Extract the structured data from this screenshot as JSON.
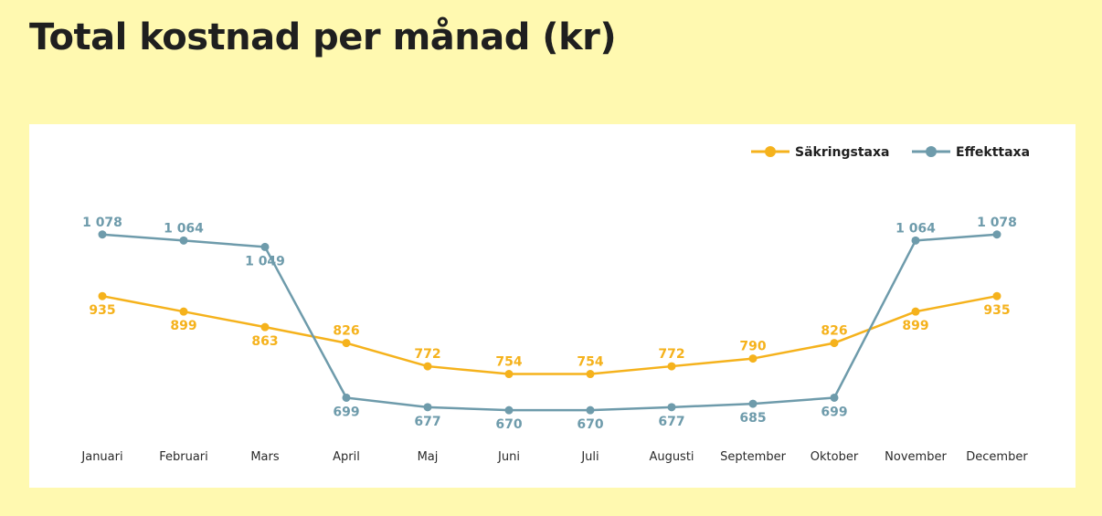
{
  "page": {
    "title": "Total kostnad per månad (kr)"
  },
  "colors": {
    "background": "#FFF9B0",
    "card": "#FFFFFF",
    "sakringstaxa": "#F5B21C",
    "effekttaxa": "#6E9BAB"
  },
  "chart_data": {
    "type": "line",
    "title": "Total kostnad per månad (kr)",
    "categories": [
      "Januari",
      "Februari",
      "Mars",
      "April",
      "Maj",
      "Juni",
      "Juli",
      "Augusti",
      "September",
      "Oktober",
      "November",
      "December"
    ],
    "series": [
      {
        "name": "Säkringstaxa",
        "color": "#F5B21C",
        "values": [
          935,
          899,
          863,
          826,
          772,
          754,
          754,
          772,
          790,
          826,
          899,
          935
        ],
        "labels": [
          "935",
          "899",
          "863",
          "826",
          "772",
          "754",
          "754",
          "772",
          "790",
          "826",
          "899",
          "935"
        ],
        "label_side": [
          "below",
          "below",
          "below",
          "above",
          "above",
          "above",
          "above",
          "above",
          "above",
          "above",
          "below",
          "below"
        ]
      },
      {
        "name": "Effekttaxa",
        "color": "#6E9BAB",
        "values": [
          1078,
          1064,
          1049,
          699,
          677,
          670,
          670,
          677,
          685,
          699,
          1064,
          1078
        ],
        "labels": [
          "1 078",
          "1 064",
          "1 049",
          "699",
          "677",
          "670",
          "670",
          "677",
          "685",
          "699",
          "1 064",
          "1 078"
        ],
        "label_side": [
          "above",
          "above",
          "below",
          "below",
          "below",
          "below",
          "below",
          "below",
          "below",
          "below",
          "above",
          "above"
        ]
      }
    ],
    "legend": "top-right",
    "grid": false
  }
}
